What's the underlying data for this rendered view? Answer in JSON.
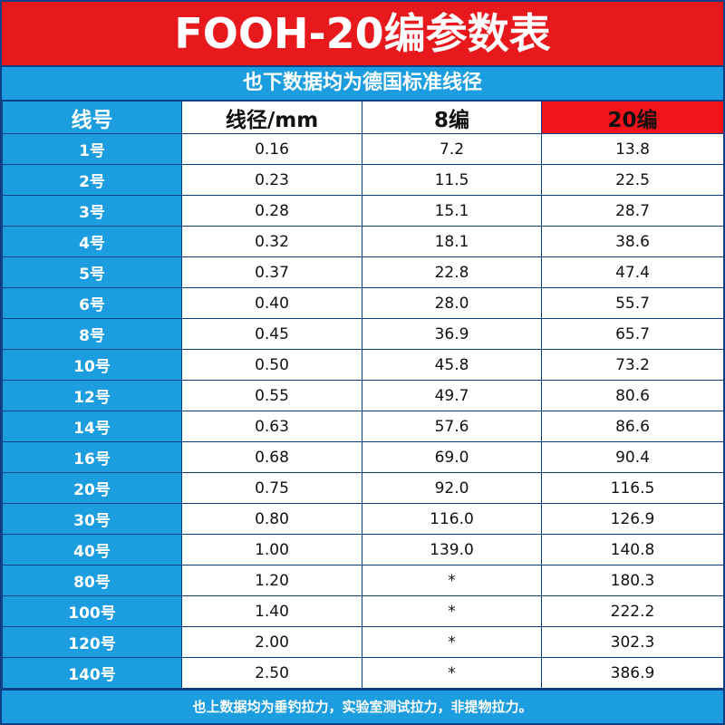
{
  "header": {
    "title": "FOOH-20编参数表",
    "subtitle": "也下数据均为德国标准线径"
  },
  "table": {
    "columns": [
      "线号",
      "线径/mm",
      "8编",
      "20编"
    ],
    "rows": [
      [
        "1号",
        "0.16",
        "7.2",
        "13.8"
      ],
      [
        "2号",
        "0.23",
        "11.5",
        "22.5"
      ],
      [
        "3号",
        "0.28",
        "15.1",
        "28.7"
      ],
      [
        "4号",
        "0.32",
        "18.1",
        "38.6"
      ],
      [
        "5号",
        "0.37",
        "22.8",
        "47.4"
      ],
      [
        "6号",
        "0.40",
        "28.0",
        "55.7"
      ],
      [
        "8号",
        "0.45",
        "36.9",
        "65.7"
      ],
      [
        "10号",
        "0.50",
        "45.8",
        "73.2"
      ],
      [
        "12号",
        "0.55",
        "49.7",
        "80.6"
      ],
      [
        "14号",
        "0.63",
        "57.6",
        "86.6"
      ],
      [
        "16号",
        "0.68",
        "69.0",
        "90.4"
      ],
      [
        "20号",
        "0.75",
        "92.0",
        "116.5"
      ],
      [
        "30号",
        "0.80",
        "116.0",
        "126.9"
      ],
      [
        "40号",
        "1.00",
        "139.0",
        "140.8"
      ],
      [
        "80号",
        "1.20",
        "*",
        "180.3"
      ],
      [
        "100号",
        "1.40",
        "*",
        "222.2"
      ],
      [
        "120号",
        "2.00",
        "*",
        "302.3"
      ],
      [
        "140号",
        "2.50",
        "*",
        "386.9"
      ]
    ]
  },
  "footer": {
    "note": "也上数据均为垂钓拉力，实验室测试拉力，非提物拉力。"
  }
}
